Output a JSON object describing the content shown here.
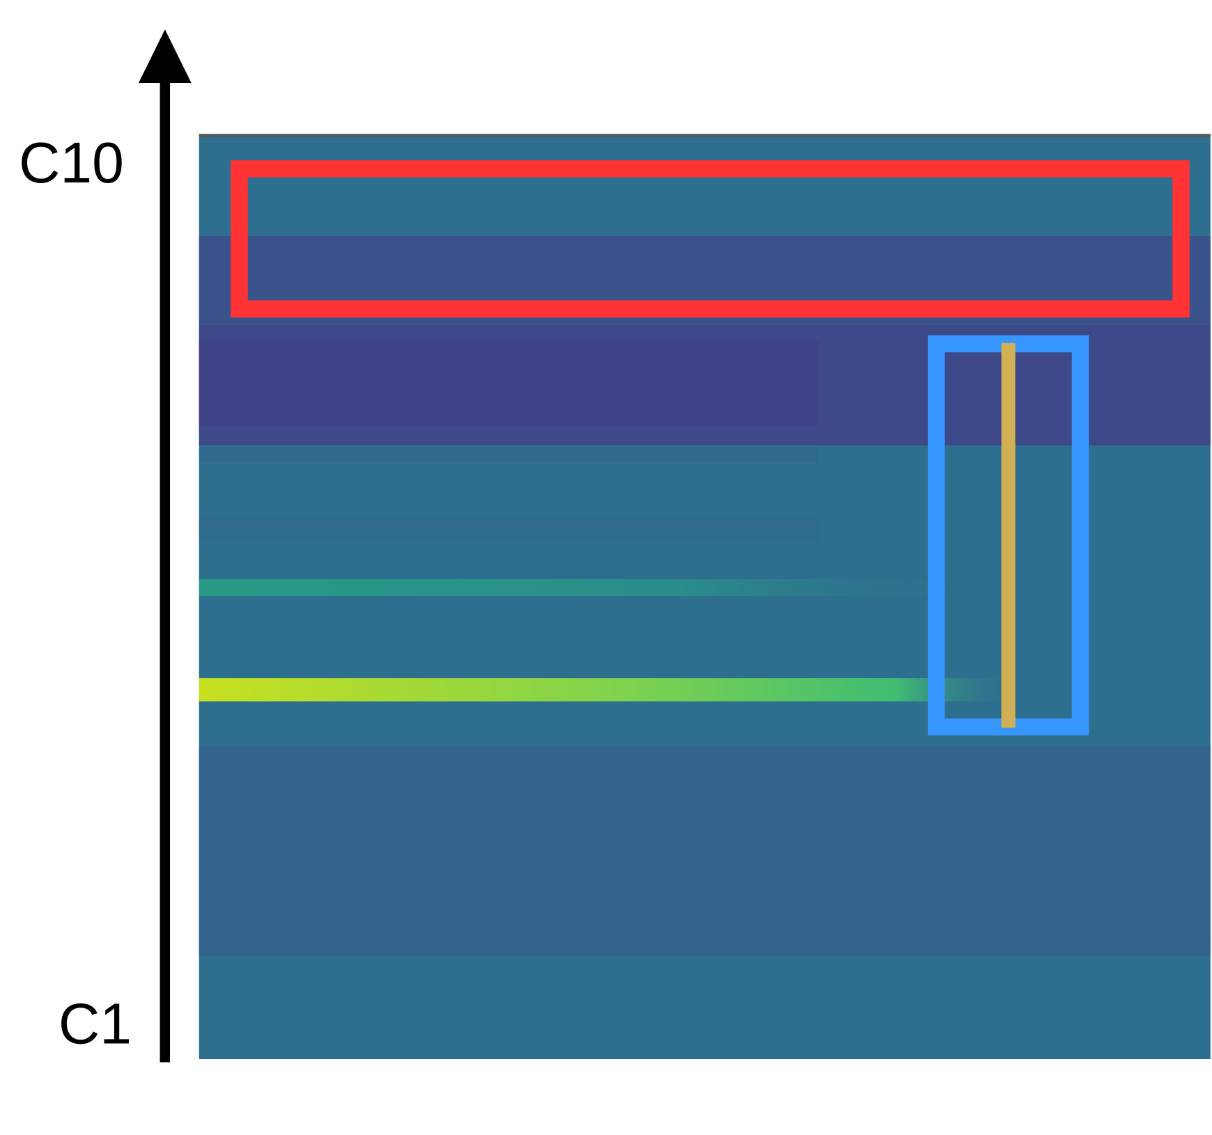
{
  "axis": {
    "top_label": "C10",
    "bottom_label": "C1"
  }
}
